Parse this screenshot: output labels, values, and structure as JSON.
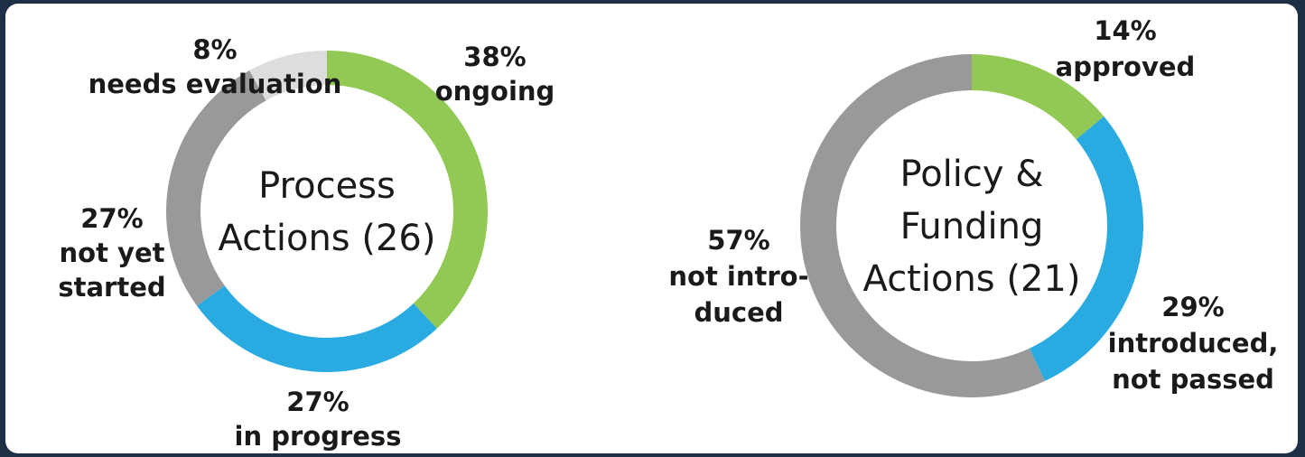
{
  "chart_data": [
    {
      "type": "pie",
      "title_lines": [
        "Process",
        "Actions (26)"
      ],
      "slices": [
        {
          "value": 38,
          "color": "#92c955",
          "label_lines": [
            "38%",
            "ongoing"
          ]
        },
        {
          "value": 27,
          "color": "#29abe2",
          "label_lines": [
            "27%",
            "in progress"
          ]
        },
        {
          "value": 27,
          "color": "#999999",
          "label_lines": [
            "27%",
            "not yet",
            "started"
          ]
        },
        {
          "value": 8,
          "color": "#dddddd",
          "label_lines": [
            "8%",
            "needs evaluation"
          ]
        }
      ]
    },
    {
      "type": "pie",
      "title_lines": [
        "Policy &",
        "Funding",
        "Actions (21)"
      ],
      "slices": [
        {
          "value": 14,
          "color": "#92c955",
          "label_lines": [
            "14%",
            "approved"
          ]
        },
        {
          "value": 29,
          "color": "#29abe2",
          "label_lines": [
            "29%",
            "introduced,",
            "not passed"
          ]
        },
        {
          "value": 57,
          "color": "#999999",
          "label_lines": [
            "57%",
            "not intro-",
            "duced"
          ]
        }
      ]
    }
  ]
}
